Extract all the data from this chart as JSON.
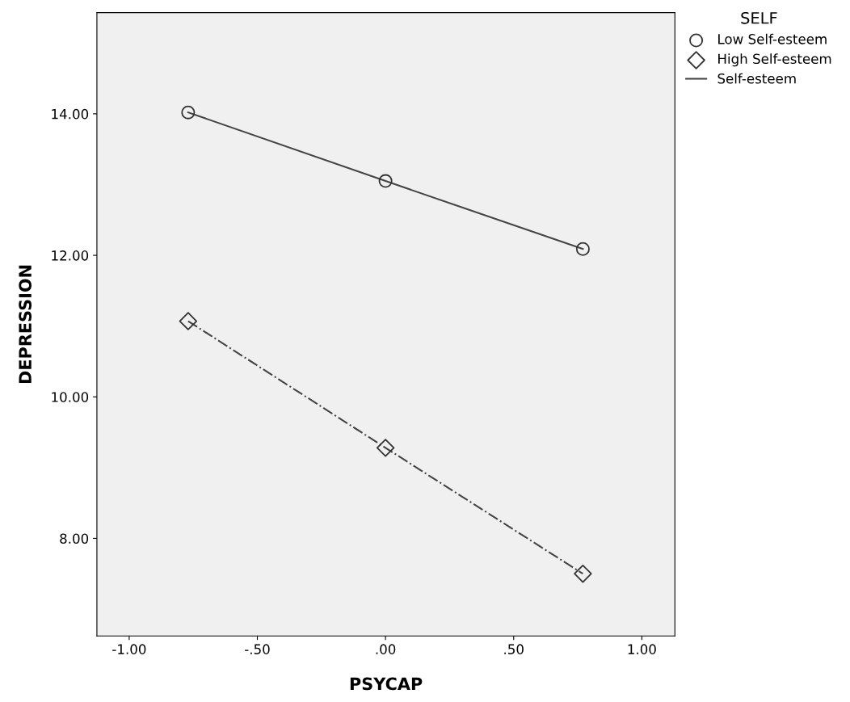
{
  "chart_data": {
    "type": "scatter",
    "xlabel": "PSYCAP",
    "ylabel": "DEPRESSION",
    "legend_title": "SELF",
    "legend": "top right",
    "grid": false,
    "xlim": [
      -1.126,
      1.129
    ],
    "ylim": [
      6.62,
      15.43
    ],
    "xticks": [
      {
        "value": -1,
        "label": "-1.00"
      },
      {
        "value": -0.5,
        "label": "-.50"
      },
      {
        "value": 0,
        "label": ".00"
      },
      {
        "value": 0.5,
        "label": ".50"
      },
      {
        "value": 1,
        "label": "1.00"
      }
    ],
    "yticks": [
      {
        "value": 8,
        "label": "8.00"
      },
      {
        "value": 10,
        "label": "10.00"
      },
      {
        "value": 12,
        "label": "12.00"
      },
      {
        "value": 14,
        "label": "14.00"
      }
    ],
    "series": [
      {
        "name": "Low Self-esteem",
        "marker": "circle",
        "color": "#333333",
        "x": [
          -0.77,
          0,
          0.77
        ],
        "values": [
          14.02,
          13.05,
          12.09
        ]
      },
      {
        "name": "High Self-esteem",
        "marker": "diamond",
        "color": "#333333",
        "x": [
          -0.77,
          0,
          0.77
        ],
        "values": [
          11.07,
          9.28,
          7.5
        ]
      },
      {
        "name": "Self-esteem",
        "type": "line",
        "marker": "none",
        "line_style": "solid",
        "color": "#444444",
        "x": [
          -0.77,
          0,
          0.77
        ],
        "values": [
          14.02,
          13.05,
          12.09
        ]
      },
      {
        "type": "line",
        "marker": "none",
        "line_style": "dashdot",
        "color": "#444444",
        "x": [
          -0.77,
          0,
          0.77
        ],
        "values": [
          11.07,
          9.28,
          7.5
        ]
      }
    ]
  }
}
